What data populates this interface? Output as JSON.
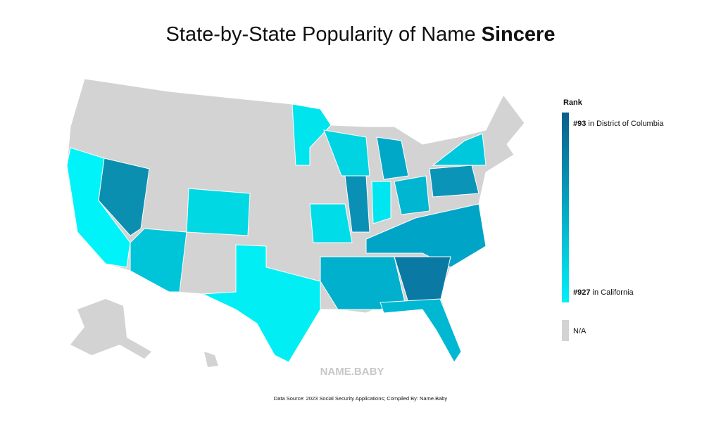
{
  "header": {
    "title": "State-by-State Popularity of Name ",
    "name": "Sincere"
  },
  "legend": {
    "title": "Rank",
    "top": {
      "rank": "#93",
      "place": "in District of Columbia"
    },
    "bottom": {
      "rank": "#927",
      "place": "in California"
    },
    "na": "N/A",
    "colors": [
      "#0a5e8c",
      "#00f0f8"
    ],
    "na_color": "#d3d3d3"
  },
  "watermark": "NAME.BABY",
  "footer": "Data Source: 2023 Social Security Applications; Compiled By: Name.Baby"
}
